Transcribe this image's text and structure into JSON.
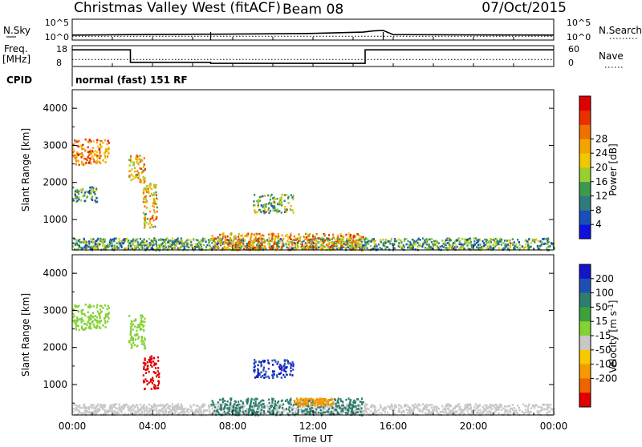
{
  "header": {
    "station": "Christmas Valley West (fitACF)",
    "beam": "Beam 08",
    "date": "07/Oct/2015"
  },
  "strip_labels": {
    "nsky": "N.Sky",
    "nsearch": "N.Search",
    "freq": "Freq.",
    "freq_unit": "[MHz]",
    "nave": "Nave",
    "cpid": "CPID",
    "cpid_value": "normal (fast) 151 RF",
    "noise_low": "10^0",
    "noise_high": "10^5",
    "freq_low": "8",
    "freq_high": "18",
    "nave_low": "0",
    "nave_high": "60"
  },
  "time_axis": {
    "label": "Time UT",
    "ticks": [
      "00:00",
      "04:00",
      "08:00",
      "12:00",
      "16:00",
      "20:00",
      "00:00"
    ]
  },
  "range_axis": {
    "label": "Slant Range [km]",
    "ticks": [
      "1000",
      "2000",
      "3000",
      "4000"
    ]
  },
  "power_scale": {
    "label": "Power [dB]",
    "ticks": [
      "4",
      "8",
      "12",
      "16",
      "20",
      "24",
      "28"
    ],
    "colors": [
      "#1010e0",
      "#1a4fb8",
      "#2f7a7a",
      "#3c9a50",
      "#9acd32",
      "#f0c800",
      "#f4a300",
      "#f07000",
      "#e83000",
      "#e00000"
    ]
  },
  "velocity_scale": {
    "label": "Velocity [m s",
    "label_sup": "-1",
    "label_end": "]",
    "ticks": [
      "200",
      "100",
      "50",
      "15",
      "-15",
      "-50",
      "-100",
      "-200"
    ],
    "colors": [
      "#1414c8",
      "#1e50b4",
      "#2e7d6e",
      "#3ca03c",
      "#82d232",
      "#c8c8c8",
      "#f8c800",
      "#f59a00",
      "#f06400",
      "#e00000"
    ]
  },
  "chart_data": [
    {
      "type": "line",
      "title": "N.Sky / N.Search",
      "x_unit": "hours UT",
      "xlim": [
        0,
        24
      ],
      "series": [
        {
          "name": "N.Sky",
          "x": [
            0,
            3,
            6.5,
            7.2,
            12,
            14.5,
            15,
            15.5,
            16,
            24
          ],
          "y": [
            1.2,
            1.3,
            1.4,
            1.4,
            1.6,
            1.9,
            2.2,
            2.3,
            1.3,
            1.2
          ]
        },
        {
          "name": "N.Search",
          "x": [
            0,
            24
          ],
          "y": [
            0.9,
            0.9
          ]
        }
      ]
    },
    {
      "type": "line",
      "title": "Freq. / Nave",
      "x_unit": "hours UT",
      "series": [
        {
          "name": "Freq. [MHz]",
          "x": [
            0,
            2.9,
            2.9,
            6.9,
            6.9,
            14.6,
            14.6,
            15.6,
            15.6,
            24
          ],
          "y": [
            16,
            16,
            10,
            10,
            9.5,
            9.5,
            16,
            16,
            16,
            16
          ]
        },
        {
          "name": "Nave",
          "x": [
            0,
            24
          ],
          "y": [
            20,
            20
          ]
        }
      ]
    },
    {
      "type": "heatmap",
      "title": "Power [dB]",
      "x_unit": "hours UT",
      "y_unit": "km",
      "ylim": [
        180,
        4500
      ],
      "regions": [
        {
          "t0": 0.0,
          "t1": 1.8,
          "r0": 2500,
          "r1": 3200,
          "v": 22
        },
        {
          "t0": 0.0,
          "t1": 1.2,
          "r0": 1500,
          "r1": 1900,
          "v": 10
        },
        {
          "t0": 2.8,
          "t1": 3.6,
          "r0": 2000,
          "r1": 2800,
          "v": 18
        },
        {
          "t0": 3.5,
          "t1": 4.2,
          "r0": 800,
          "r1": 2000,
          "v": 18
        },
        {
          "t0": 9.0,
          "t1": 11.0,
          "r0": 1200,
          "r1": 1700,
          "v": 12
        },
        {
          "t0": 0.0,
          "t1": 24.0,
          "r0": 200,
          "r1": 520,
          "v": 10
        },
        {
          "t0": 6.9,
          "t1": 14.5,
          "r0": 200,
          "r1": 650,
          "v": 20
        }
      ]
    },
    {
      "type": "heatmap",
      "title": "Velocity [m s-1]",
      "x_unit": "hours UT",
      "y_unit": "km",
      "ylim": [
        180,
        4500
      ],
      "regions": [
        {
          "t0": 0.0,
          "t1": 1.8,
          "r0": 2500,
          "r1": 3200,
          "v": 0
        },
        {
          "t0": 2.8,
          "t1": 3.6,
          "r0": 2000,
          "r1": 2900,
          "v": 0
        },
        {
          "t0": 3.5,
          "t1": 4.3,
          "r0": 900,
          "r1": 1800,
          "v": -250
        },
        {
          "t0": 9.0,
          "t1": 11.0,
          "r0": 1200,
          "r1": 1700,
          "v": 200
        },
        {
          "t0": 0.0,
          "t1": 24.0,
          "r0": 200,
          "r1": 500,
          "v": -40
        },
        {
          "t0": 6.9,
          "t1": 14.5,
          "r0": 200,
          "r1": 650,
          "v": 60
        },
        {
          "t0": 11.0,
          "t1": 13.0,
          "r0": 450,
          "r1": 650,
          "v": -150
        }
      ]
    }
  ]
}
